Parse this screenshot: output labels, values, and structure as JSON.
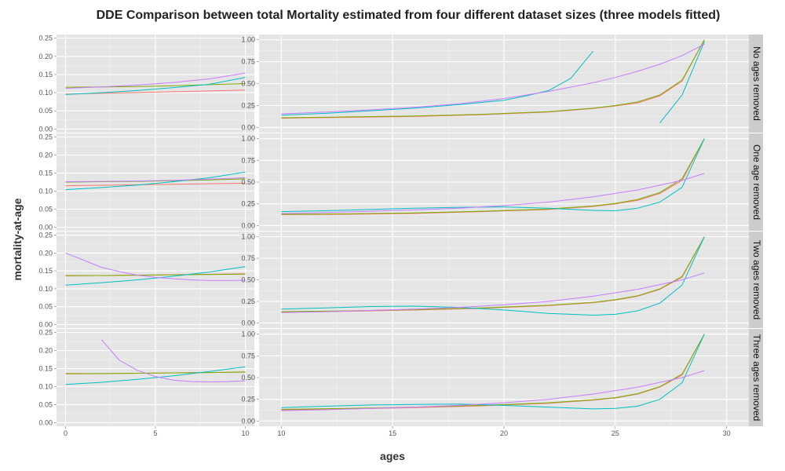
{
  "chart_data": {
    "type": "line",
    "title": "DDE Comparison between total Mortality estimated from four different dataset sizes (three models fitted)",
    "xlabel": "ages",
    "ylabel": "mortality-at-age",
    "facet_rows": [
      "No ages removed",
      "One age removed",
      "Two ages removed",
      "Three ages removed"
    ],
    "column_ranges": [
      {
        "xlim": [
          -0.5,
          10.5
        ],
        "xticks": [
          0,
          5,
          10
        ],
        "ylim": [
          -0.01,
          0.26
        ],
        "yticks": [
          "0.00",
          "0.05",
          "0.10",
          "0.15",
          "0.20",
          "0.25"
        ]
      },
      {
        "xlim": [
          9,
          31
        ],
        "xticks": [
          10,
          15,
          20,
          25,
          30
        ],
        "ylim": [
          -0.06,
          1.06
        ],
        "yticks": [
          "0.00",
          "0.25",
          "0.50",
          "0.75",
          "1.00"
        ]
      }
    ],
    "series_colors": [
      "#F8766D",
      "#7CAE00",
      "#00BFC4",
      "#C77CFF"
    ],
    "grid": true,
    "panels": [
      {
        "row": 0,
        "col": 0,
        "series": [
          {
            "color": "#F8766D",
            "x": [
              0,
              10
            ],
            "y": [
              0.096,
              0.107
            ]
          },
          {
            "color": "#7CAE00",
            "x": [
              0,
              2,
              4,
              6,
              8,
              10
            ],
            "y": [
              0.115,
              0.116,
              0.117,
              0.119,
              0.122,
              0.125
            ]
          },
          {
            "color": "#00BFC4",
            "x": [
              0,
              2,
              4,
              6,
              8,
              10
            ],
            "y": [
              0.095,
              0.1,
              0.106,
              0.114,
              0.123,
              0.142
            ]
          },
          {
            "color": "#C77CFF",
            "x": [
              0,
              2,
              4,
              6,
              8,
              10
            ],
            "y": [
              0.112,
              0.116,
              0.121,
              0.128,
              0.138,
              0.154
            ]
          }
        ]
      },
      {
        "row": 0,
        "col": 1,
        "series": [
          {
            "color": "#F8766D",
            "x": [
              10,
              13,
              16,
              19,
              22,
              24,
              25,
              26,
              27,
              28,
              29
            ],
            "y": [
              0.105,
              0.115,
              0.125,
              0.145,
              0.175,
              0.215,
              0.245,
              0.28,
              0.36,
              0.53,
              1.0
            ]
          },
          {
            "color": "#7CAE00",
            "x": [
              10,
              13,
              16,
              19,
              22,
              24,
              25,
              26,
              27,
              28,
              29
            ],
            "y": [
              0.11,
              0.12,
              0.13,
              0.15,
              0.18,
              0.22,
              0.25,
              0.29,
              0.37,
              0.54,
              1.0
            ]
          },
          {
            "color": "#00BFC4",
            "x": [
              10,
              12,
              14,
              16,
              18,
              20,
              21,
              22,
              23,
              24
            ],
            "y": [
              0.14,
              0.16,
              0.19,
              0.22,
              0.26,
              0.31,
              0.36,
              0.42,
              0.56,
              0.87
            ]
          },
          {
            "color": "#00BFC4",
            "x": [
              27,
              28,
              29
            ],
            "y": [
              0.05,
              0.37,
              0.98
            ]
          },
          {
            "color": "#C77CFF",
            "x": [
              10,
              12,
              14,
              16,
              18,
              20,
              22,
              24,
              25,
              26,
              27,
              28,
              29
            ],
            "y": [
              0.155,
              0.175,
              0.2,
              0.23,
              0.27,
              0.33,
              0.41,
              0.51,
              0.57,
              0.64,
              0.72,
              0.82,
              0.95
            ]
          }
        ]
      },
      {
        "row": 1,
        "col": 0,
        "series": [
          {
            "color": "#F8766D",
            "x": [
              0,
              10
            ],
            "y": [
              0.115,
              0.122
            ]
          },
          {
            "color": "#7CAE00",
            "x": [
              0,
              2,
              4,
              6,
              8,
              10
            ],
            "y": [
              0.125,
              0.126,
              0.127,
              0.129,
              0.131,
              0.134
            ]
          },
          {
            "color": "#00BFC4",
            "x": [
              0,
              2,
              4,
              6,
              8,
              10
            ],
            "y": [
              0.104,
              0.11,
              0.117,
              0.126,
              0.137,
              0.153
            ]
          },
          {
            "color": "#C77CFF",
            "x": [
              0,
              2,
              4,
              6,
              8,
              10
            ],
            "y": [
              0.126,
              0.127,
              0.128,
              0.13,
              0.133,
              0.137
            ]
          }
        ]
      },
      {
        "row": 1,
        "col": 1,
        "series": [
          {
            "color": "#F8766D",
            "x": [
              10,
              13,
              16,
              19,
              22,
              24,
              25,
              26,
              27,
              28,
              29
            ],
            "y": [
              0.125,
              0.13,
              0.14,
              0.16,
              0.185,
              0.22,
              0.25,
              0.29,
              0.37,
              0.52,
              1.0
            ]
          },
          {
            "color": "#7CAE00",
            "x": [
              10,
              13,
              16,
              19,
              22,
              24,
              25,
              26,
              27,
              28,
              29
            ],
            "y": [
              0.13,
              0.135,
              0.145,
              0.165,
              0.19,
              0.225,
              0.255,
              0.3,
              0.38,
              0.54,
              1.0
            ]
          },
          {
            "color": "#00BFC4",
            "x": [
              10,
              12,
              14,
              16,
              18,
              20,
              22,
              24,
              25,
              26,
              27,
              28,
              29
            ],
            "y": [
              0.16,
              0.17,
              0.185,
              0.2,
              0.21,
              0.215,
              0.2,
              0.175,
              0.17,
              0.2,
              0.27,
              0.44,
              1.0
            ]
          },
          {
            "color": "#C77CFF",
            "x": [
              10,
              12,
              14,
              16,
              18,
              20,
              22,
              24,
              26,
              28,
              29
            ],
            "y": [
              0.14,
              0.15,
              0.165,
              0.18,
              0.2,
              0.23,
              0.27,
              0.33,
              0.41,
              0.52,
              0.6
            ]
          }
        ]
      },
      {
        "row": 2,
        "col": 0,
        "series": [
          {
            "color": "#F8766D",
            "x": [
              0,
              10
            ],
            "y": [
              0.136,
              0.142
            ]
          },
          {
            "color": "#7CAE00",
            "x": [
              0,
              2,
              4,
              6,
              8,
              10
            ],
            "y": [
              0.137,
              0.137,
              0.138,
              0.139,
              0.14,
              0.141
            ]
          },
          {
            "color": "#00BFC4",
            "x": [
              0,
              2,
              4,
              6,
              8,
              10
            ],
            "y": [
              0.11,
              0.117,
              0.125,
              0.135,
              0.147,
              0.162
            ]
          },
          {
            "color": "#C77CFF",
            "x": [
              0,
              1,
              2,
              3,
              4,
              5,
              6,
              7,
              8,
              9,
              10
            ],
            "y": [
              0.2,
              0.18,
              0.16,
              0.148,
              0.138,
              0.132,
              0.128,
              0.125,
              0.123,
              0.123,
              0.124
            ]
          }
        ]
      },
      {
        "row": 2,
        "col": 1,
        "series": [
          {
            "color": "#F8766D",
            "x": [
              10,
              13,
              16,
              19,
              22,
              24,
              25,
              26,
              27,
              28,
              29
            ],
            "y": [
              0.125,
              0.135,
              0.15,
              0.17,
              0.2,
              0.235,
              0.265,
              0.31,
              0.39,
              0.53,
              1.0
            ]
          },
          {
            "color": "#7CAE00",
            "x": [
              10,
              13,
              16,
              19,
              22,
              24,
              25,
              26,
              27,
              28,
              29
            ],
            "y": [
              0.13,
              0.14,
              0.155,
              0.175,
              0.205,
              0.24,
              0.27,
              0.315,
              0.395,
              0.54,
              1.0
            ]
          },
          {
            "color": "#00BFC4",
            "x": [
              10,
              12,
              14,
              16,
              18,
              20,
              22,
              24,
              25,
              26,
              27,
              28,
              29
            ],
            "y": [
              0.16,
              0.175,
              0.19,
              0.195,
              0.18,
              0.15,
              0.11,
              0.09,
              0.1,
              0.14,
              0.23,
              0.44,
              1.0
            ]
          },
          {
            "color": "#C77CFF",
            "x": [
              10,
              12,
              14,
              16,
              18,
              20,
              22,
              24,
              26,
              28,
              29
            ],
            "y": [
              0.12,
              0.13,
              0.145,
              0.16,
              0.18,
              0.21,
              0.25,
              0.31,
              0.39,
              0.5,
              0.58
            ]
          }
        ]
      },
      {
        "row": 3,
        "col": 0,
        "series": [
          {
            "color": "#F8766D",
            "x": [
              0,
              10
            ],
            "y": [
              0.135,
              0.14
            ]
          },
          {
            "color": "#7CAE00",
            "x": [
              0,
              2,
              4,
              6,
              8,
              10
            ],
            "y": [
              0.136,
              0.136,
              0.137,
              0.138,
              0.139,
              0.141
            ]
          },
          {
            "color": "#00BFC4",
            "x": [
              0,
              2,
              4,
              6,
              8,
              10
            ],
            "y": [
              0.106,
              0.112,
              0.12,
              0.13,
              0.142,
              0.155
            ]
          },
          {
            "color": "#C77CFF",
            "x": [
              2,
              3,
              4,
              5,
              6,
              7,
              8,
              9,
              10
            ],
            "y": [
              0.23,
              0.173,
              0.145,
              0.128,
              0.118,
              0.114,
              0.113,
              0.114,
              0.116
            ]
          }
        ]
      },
      {
        "row": 3,
        "col": 1,
        "series": [
          {
            "color": "#F8766D",
            "x": [
              10,
              13,
              16,
              19,
              22,
              24,
              25,
              26,
              27,
              28,
              29
            ],
            "y": [
              0.13,
              0.14,
              0.155,
              0.175,
              0.205,
              0.24,
              0.265,
              0.31,
              0.39,
              0.53,
              1.0
            ]
          },
          {
            "color": "#7CAE00",
            "x": [
              10,
              13,
              16,
              19,
              22,
              24,
              25,
              26,
              27,
              28,
              29
            ],
            "y": [
              0.135,
              0.145,
              0.16,
              0.18,
              0.21,
              0.245,
              0.27,
              0.315,
              0.395,
              0.54,
              1.0
            ]
          },
          {
            "color": "#00BFC4",
            "x": [
              10,
              12,
              14,
              16,
              18,
              20,
              22,
              24,
              25,
              26,
              27,
              28,
              29
            ],
            "y": [
              0.155,
              0.17,
              0.185,
              0.19,
              0.195,
              0.18,
              0.16,
              0.14,
              0.145,
              0.17,
              0.25,
              0.44,
              1.0
            ]
          },
          {
            "color": "#C77CFF",
            "x": [
              10,
              12,
              14,
              16,
              18,
              20,
              22,
              24,
              26,
              28,
              29
            ],
            "y": [
              0.12,
              0.13,
              0.145,
              0.16,
              0.18,
              0.21,
              0.25,
              0.31,
              0.39,
              0.5,
              0.58
            ]
          }
        ]
      }
    ]
  }
}
